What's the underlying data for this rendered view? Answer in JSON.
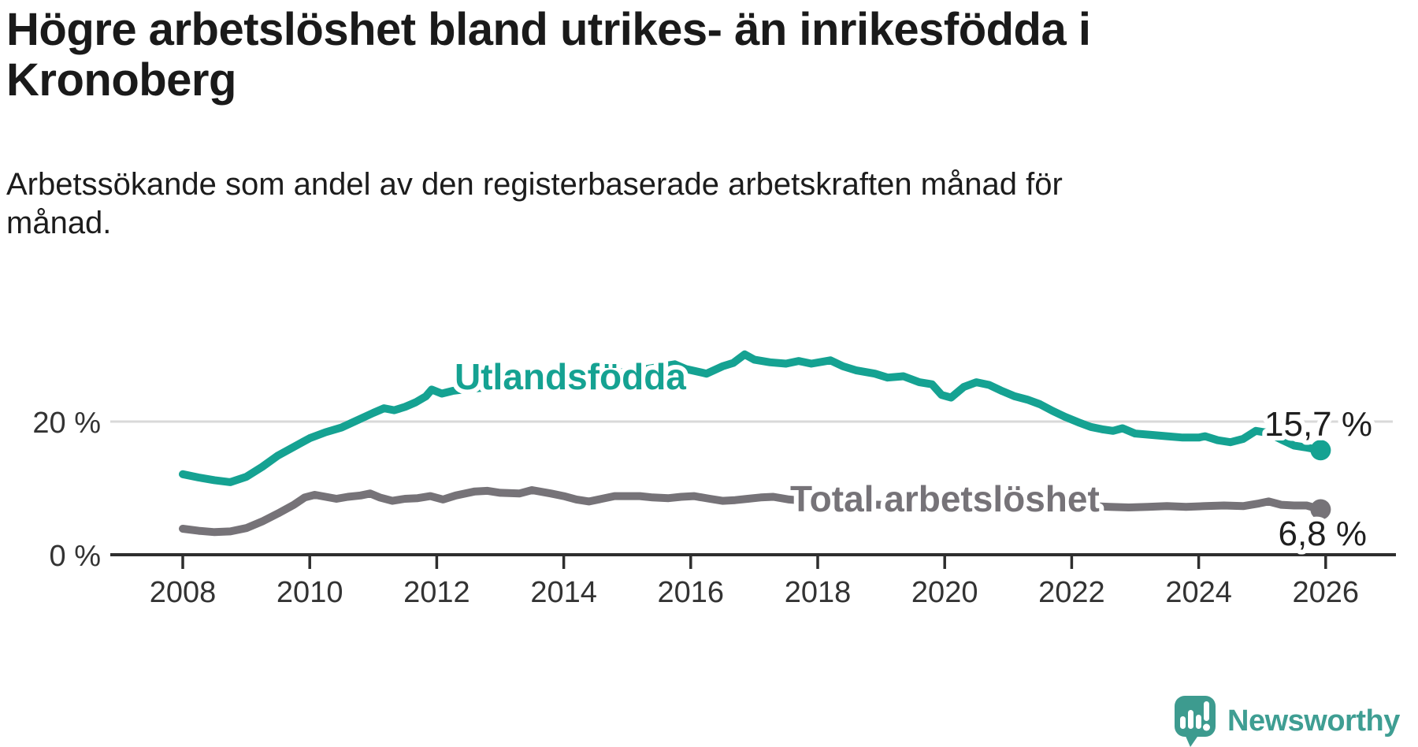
{
  "header": {
    "title": "Högre arbetslöshet bland utrikes- än inrikesfödda i Kronoberg",
    "subtitle": "Arbetssökande som andel av den registerbaserade arbetskraften månad för månad."
  },
  "colors": {
    "teal_line": "#15a292",
    "gray_line": "#767378",
    "axis": "#2e2e2e",
    "gridline": "#d9d9d9",
    "tick_text": "#333333",
    "brand_teal": "#3f9e93"
  },
  "y_axis": {
    "gridline_label": "20 %",
    "baseline_label": "0 %",
    "gridline_value": 20,
    "baseline_value": 0
  },
  "x_axis": {
    "ticks": [
      "2008",
      "2010",
      "2012",
      "2014",
      "2016",
      "2018",
      "2020",
      "2022",
      "2024",
      "2026"
    ]
  },
  "chart_data": {
    "type": "line",
    "title": "Högre arbetslöshet bland utrikes- än inrikesfödda i Kronoberg",
    "xlabel": "",
    "ylabel": "Arbetssökande som andel av den registerbaserade arbetskraften (%)",
    "x_range": [
      2008,
      2026.3
    ],
    "ylim": [
      0,
      38
    ],
    "grid": "single horizontal gridline at 20 %",
    "legend_position": "inline labels on lines",
    "series": [
      {
        "name": "Utlandsfödda",
        "color": "#15a292",
        "end_label": "15,7 %",
        "end_value": 15.7,
        "points": [
          [
            2008.0,
            12.1
          ],
          [
            2008.25,
            11.6
          ],
          [
            2008.5,
            11.2
          ],
          [
            2008.75,
            10.9
          ],
          [
            2009.0,
            11.7
          ],
          [
            2009.25,
            13.2
          ],
          [
            2009.5,
            14.9
          ],
          [
            2009.75,
            16.2
          ],
          [
            2010.0,
            17.5
          ],
          [
            2010.25,
            18.4
          ],
          [
            2010.5,
            19.1
          ],
          [
            2010.75,
            20.2
          ],
          [
            2011.0,
            21.3
          ],
          [
            2011.17,
            22.0
          ],
          [
            2011.33,
            21.7
          ],
          [
            2011.5,
            22.2
          ],
          [
            2011.67,
            22.9
          ],
          [
            2011.83,
            23.8
          ],
          [
            2011.92,
            24.8
          ],
          [
            2012.08,
            24.2
          ],
          [
            2012.25,
            24.6
          ],
          [
            2012.5,
            24.9
          ],
          [
            2012.75,
            25.1
          ],
          [
            2013.0,
            25.4
          ],
          [
            2013.25,
            25.7
          ],
          [
            2013.5,
            26.0
          ],
          [
            2013.75,
            26.2
          ],
          [
            2014.0,
            26.5
          ],
          [
            2014.25,
            26.7
          ],
          [
            2014.5,
            27.0
          ],
          [
            2014.75,
            27.2
          ],
          [
            2015.0,
            27.5
          ],
          [
            2015.25,
            27.8
          ],
          [
            2015.5,
            28.2
          ],
          [
            2015.75,
            28.6
          ],
          [
            2015.92,
            27.9
          ],
          [
            2016.25,
            27.2
          ],
          [
            2016.5,
            28.3
          ],
          [
            2016.67,
            28.8
          ],
          [
            2016.85,
            30.1
          ],
          [
            2017.0,
            29.3
          ],
          [
            2017.25,
            28.9
          ],
          [
            2017.5,
            28.7
          ],
          [
            2017.7,
            29.1
          ],
          [
            2017.9,
            28.7
          ],
          [
            2018.2,
            29.2
          ],
          [
            2018.4,
            28.3
          ],
          [
            2018.6,
            27.7
          ],
          [
            2018.9,
            27.2
          ],
          [
            2019.1,
            26.6
          ],
          [
            2019.35,
            26.8
          ],
          [
            2019.6,
            25.9
          ],
          [
            2019.8,
            25.6
          ],
          [
            2019.95,
            24.0
          ],
          [
            2020.1,
            23.6
          ],
          [
            2020.3,
            25.2
          ],
          [
            2020.5,
            25.9
          ],
          [
            2020.7,
            25.5
          ],
          [
            2020.9,
            24.6
          ],
          [
            2021.1,
            23.8
          ],
          [
            2021.3,
            23.3
          ],
          [
            2021.5,
            22.6
          ],
          [
            2021.7,
            21.6
          ],
          [
            2021.9,
            20.7
          ],
          [
            2022.1,
            19.9
          ],
          [
            2022.3,
            19.2
          ],
          [
            2022.5,
            18.8
          ],
          [
            2022.65,
            18.6
          ],
          [
            2022.8,
            19.0
          ],
          [
            2023.0,
            18.2
          ],
          [
            2023.25,
            18.0
          ],
          [
            2023.5,
            17.8
          ],
          [
            2023.75,
            17.6
          ],
          [
            2024.0,
            17.6
          ],
          [
            2024.1,
            17.8
          ],
          [
            2024.3,
            17.2
          ],
          [
            2024.5,
            16.9
          ],
          [
            2024.7,
            17.4
          ],
          [
            2024.9,
            18.6
          ],
          [
            2025.1,
            18.3
          ],
          [
            2025.3,
            17.3
          ],
          [
            2025.5,
            16.4
          ],
          [
            2025.7,
            16.1
          ],
          [
            2025.92,
            15.7
          ]
        ]
      },
      {
        "name": "Total arbetslöshet",
        "color": "#767378",
        "end_label": "6,8 %",
        "end_value": 6.8,
        "points": [
          [
            2008.0,
            3.9
          ],
          [
            2008.25,
            3.6
          ],
          [
            2008.5,
            3.4
          ],
          [
            2008.75,
            3.5
          ],
          [
            2009.0,
            4.0
          ],
          [
            2009.25,
            5.0
          ],
          [
            2009.5,
            6.2
          ],
          [
            2009.75,
            7.5
          ],
          [
            2009.92,
            8.6
          ],
          [
            2010.08,
            9.0
          ],
          [
            2010.25,
            8.7
          ],
          [
            2010.42,
            8.4
          ],
          [
            2010.6,
            8.7
          ],
          [
            2010.8,
            8.9
          ],
          [
            2010.95,
            9.2
          ],
          [
            2011.1,
            8.6
          ],
          [
            2011.3,
            8.1
          ],
          [
            2011.5,
            8.4
          ],
          [
            2011.7,
            8.5
          ],
          [
            2011.9,
            8.8
          ],
          [
            2012.1,
            8.3
          ],
          [
            2012.3,
            8.9
          ],
          [
            2012.6,
            9.5
          ],
          [
            2012.8,
            9.6
          ],
          [
            2013.0,
            9.3
          ],
          [
            2013.3,
            9.2
          ],
          [
            2013.5,
            9.7
          ],
          [
            2013.8,
            9.2
          ],
          [
            2014.0,
            8.8
          ],
          [
            2014.2,
            8.3
          ],
          [
            2014.4,
            8.0
          ],
          [
            2014.6,
            8.4
          ],
          [
            2014.8,
            8.8
          ],
          [
            2015.0,
            8.8
          ],
          [
            2015.2,
            8.8
          ],
          [
            2015.4,
            8.6
          ],
          [
            2015.65,
            8.5
          ],
          [
            2015.85,
            8.7
          ],
          [
            2016.05,
            8.8
          ],
          [
            2016.3,
            8.4
          ],
          [
            2016.5,
            8.1
          ],
          [
            2016.7,
            8.2
          ],
          [
            2016.9,
            8.4
          ],
          [
            2017.1,
            8.6
          ],
          [
            2017.3,
            8.7
          ],
          [
            2017.55,
            8.3
          ],
          [
            2018.0,
            7.9
          ],
          [
            2018.5,
            7.6
          ],
          [
            2019.0,
            7.5
          ],
          [
            2019.5,
            7.4
          ],
          [
            2020.0,
            7.8
          ],
          [
            2020.5,
            9.0
          ],
          [
            2021.0,
            8.8
          ],
          [
            2021.5,
            8.2
          ],
          [
            2022.0,
            7.6
          ],
          [
            2022.34,
            7.3
          ],
          [
            2022.6,
            7.2
          ],
          [
            2022.9,
            7.1
          ],
          [
            2023.2,
            7.2
          ],
          [
            2023.5,
            7.3
          ],
          [
            2023.8,
            7.2
          ],
          [
            2024.1,
            7.3
          ],
          [
            2024.4,
            7.4
          ],
          [
            2024.7,
            7.3
          ],
          [
            2024.95,
            7.7
          ],
          [
            2025.1,
            8.0
          ],
          [
            2025.3,
            7.5
          ],
          [
            2025.5,
            7.4
          ],
          [
            2025.7,
            7.4
          ],
          [
            2025.92,
            6.8
          ]
        ]
      }
    ]
  },
  "branding": {
    "name": "Newsworthy"
  }
}
